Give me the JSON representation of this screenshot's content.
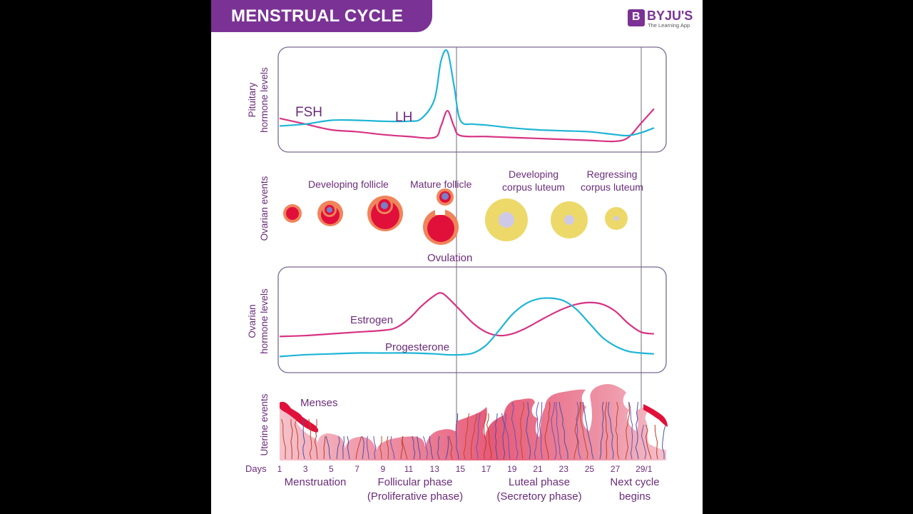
{
  "header": {
    "title": "MENSTRUAL CYCLE",
    "logo_name": "BYJU'S",
    "logo_tagline": "The Learning App",
    "logo_glyph": "B"
  },
  "colors": {
    "brand_purple": "#7b3295",
    "label_purple": "#6a2c7a",
    "pink_line": "#d63384",
    "cyan_line": "#1fb5d6",
    "follicle_red": "#e0103a",
    "follicle_orange": "#f0845a",
    "oocyte_blue": "#7a7fc7",
    "corpus_yellow": "#ecd96a",
    "corpus_center": "#cfc9e8",
    "endometrium": "#e8607c",
    "frame": "#7a6a90"
  },
  "panels": {
    "pituitary": {
      "ylabel_line1": "Pituitary",
      "ylabel_line2": "hormone levels",
      "series": [
        {
          "name": "FSH",
          "label": "FSH",
          "color": "pink",
          "days": [
            1,
            3,
            5,
            7,
            9,
            11,
            13,
            13.5,
            14,
            14.5,
            15,
            17,
            19,
            21,
            23,
            25,
            27,
            28,
            29,
            30
          ],
          "levels": [
            0.3,
            0.24,
            0.18,
            0.16,
            0.13,
            0.11,
            0.1,
            0.22,
            0.38,
            0.22,
            0.12,
            0.11,
            0.1,
            0.09,
            0.08,
            0.07,
            0.06,
            0.1,
            0.25,
            0.4
          ]
        },
        {
          "name": "LH",
          "label": "LH",
          "color": "cyan",
          "days": [
            1,
            3,
            5,
            7,
            9,
            11,
            12,
            13,
            13.5,
            14,
            14.5,
            15,
            16,
            17,
            19,
            21,
            23,
            25,
            27,
            28,
            29,
            30
          ],
          "levels": [
            0.22,
            0.24,
            0.28,
            0.28,
            0.27,
            0.27,
            0.3,
            0.5,
            0.9,
            1.0,
            0.65,
            0.28,
            0.24,
            0.23,
            0.2,
            0.18,
            0.17,
            0.16,
            0.13,
            0.12,
            0.15,
            0.2
          ]
        }
      ]
    },
    "ovarian_events": {
      "ylabel": "Ovarian events",
      "labels": {
        "developing_follicle": "Developing follicle",
        "mature_follicle": "Mature follicle",
        "ovulation": "Ovulation",
        "developing_corpus_1": "Developing",
        "developing_corpus_2": "corpus luteum",
        "regressing_corpus_1": "Regressing",
        "regressing_corpus_2": "corpus luteum"
      },
      "stages": [
        {
          "name": "primary-follicle",
          "day": 2
        },
        {
          "name": "secondary-follicle",
          "day": 5.8
        },
        {
          "name": "tertiary-follicle",
          "day": 10
        },
        {
          "name": "mature-follicle",
          "day": 13.6
        },
        {
          "name": "ovulating-follicle",
          "day": 13.6
        },
        {
          "name": "developing-corpus-luteum-large",
          "day": 19
        },
        {
          "name": "developing-corpus-luteum-medium",
          "day": 23.3
        },
        {
          "name": "regressing-corpus-luteum",
          "day": 27
        }
      ]
    },
    "ovarian_hormones": {
      "ylabel_line1": "Ovarian",
      "ylabel_line2": "hormone levels",
      "series": [
        {
          "name": "Estrogen",
          "label": "Estrogen",
          "color": "pink",
          "days": [
            1,
            3,
            5,
            7,
            9,
            10,
            11,
            12,
            13,
            13.5,
            14,
            15,
            16,
            17,
            18,
            19,
            20,
            21,
            22,
            23,
            24,
            25,
            26,
            27,
            28,
            29,
            30
          ],
          "levels": [
            0.35,
            0.36,
            0.38,
            0.4,
            0.42,
            0.45,
            0.55,
            0.7,
            0.82,
            0.85,
            0.8,
            0.65,
            0.5,
            0.4,
            0.36,
            0.38,
            0.44,
            0.52,
            0.6,
            0.67,
            0.72,
            0.74,
            0.72,
            0.64,
            0.5,
            0.4,
            0.38
          ]
        },
        {
          "name": "Progesterone",
          "label": "Progesterone",
          "color": "cyan",
          "days": [
            1,
            3,
            5,
            7,
            9,
            11,
            13,
            14,
            15,
            16,
            17,
            18,
            19,
            20,
            21,
            22,
            23,
            24,
            25,
            26,
            27,
            28,
            29,
            30
          ],
          "levels": [
            0.12,
            0.14,
            0.15,
            0.16,
            0.16,
            0.16,
            0.15,
            0.14,
            0.14,
            0.16,
            0.25,
            0.42,
            0.6,
            0.72,
            0.78,
            0.79,
            0.76,
            0.66,
            0.5,
            0.34,
            0.24,
            0.18,
            0.16,
            0.15
          ]
        }
      ]
    },
    "uterine": {
      "ylabel": "Uterine events",
      "menses_label": "Menses"
    }
  },
  "axis": {
    "label": "Days",
    "ticks": [
      "1",
      "3",
      "5",
      "7",
      "9",
      "11",
      "13",
      "15",
      "17",
      "19",
      "21",
      "23",
      "25",
      "27",
      "29/1"
    ]
  },
  "phases": [
    {
      "line1": "Menstruation",
      "line2": ""
    },
    {
      "line1": "Follicular phase",
      "line2": "(Proliferative phase)"
    },
    {
      "line1": "Luteal phase",
      "line2": "(Secretory phase)"
    },
    {
      "line1": "Next cycle",
      "line2": "begins"
    }
  ],
  "chart_data": [
    {
      "type": "line",
      "title": "Pituitary hormone levels",
      "xlabel": "Days",
      "ylabel": "Pituitary hormone levels",
      "x_range": [
        1,
        30
      ],
      "series": [
        {
          "name": "FSH",
          "x": [
            1,
            3,
            5,
            7,
            9,
            11,
            13,
            14,
            15,
            17,
            19,
            21,
            23,
            25,
            27,
            29,
            30
          ],
          "y": [
            0.3,
            0.24,
            0.18,
            0.16,
            0.13,
            0.11,
            0.1,
            0.38,
            0.12,
            0.11,
            0.1,
            0.09,
            0.08,
            0.07,
            0.06,
            0.25,
            0.4
          ]
        },
        {
          "name": "LH",
          "x": [
            1,
            3,
            5,
            7,
            9,
            11,
            13,
            14,
            15,
            17,
            19,
            21,
            23,
            25,
            27,
            29,
            30
          ],
          "y": [
            0.22,
            0.24,
            0.28,
            0.28,
            0.27,
            0.27,
            0.5,
            1.0,
            0.28,
            0.23,
            0.2,
            0.18,
            0.17,
            0.16,
            0.13,
            0.15,
            0.2
          ]
        }
      ]
    },
    {
      "type": "line",
      "title": "Ovarian hormone levels",
      "xlabel": "Days",
      "ylabel": "Ovarian hormone levels",
      "x_range": [
        1,
        30
      ],
      "series": [
        {
          "name": "Estrogen",
          "x": [
            1,
            5,
            9,
            13.5,
            17,
            18,
            21,
            25,
            28,
            30
          ],
          "y": [
            0.35,
            0.38,
            0.42,
            0.85,
            0.4,
            0.36,
            0.52,
            0.74,
            0.5,
            0.38
          ]
        },
        {
          "name": "Progesterone",
          "x": [
            1,
            5,
            9,
            14,
            17,
            21,
            22,
            25,
            27,
            30
          ],
          "y": [
            0.12,
            0.15,
            0.16,
            0.14,
            0.25,
            0.78,
            0.79,
            0.5,
            0.24,
            0.15
          ]
        }
      ]
    }
  ]
}
